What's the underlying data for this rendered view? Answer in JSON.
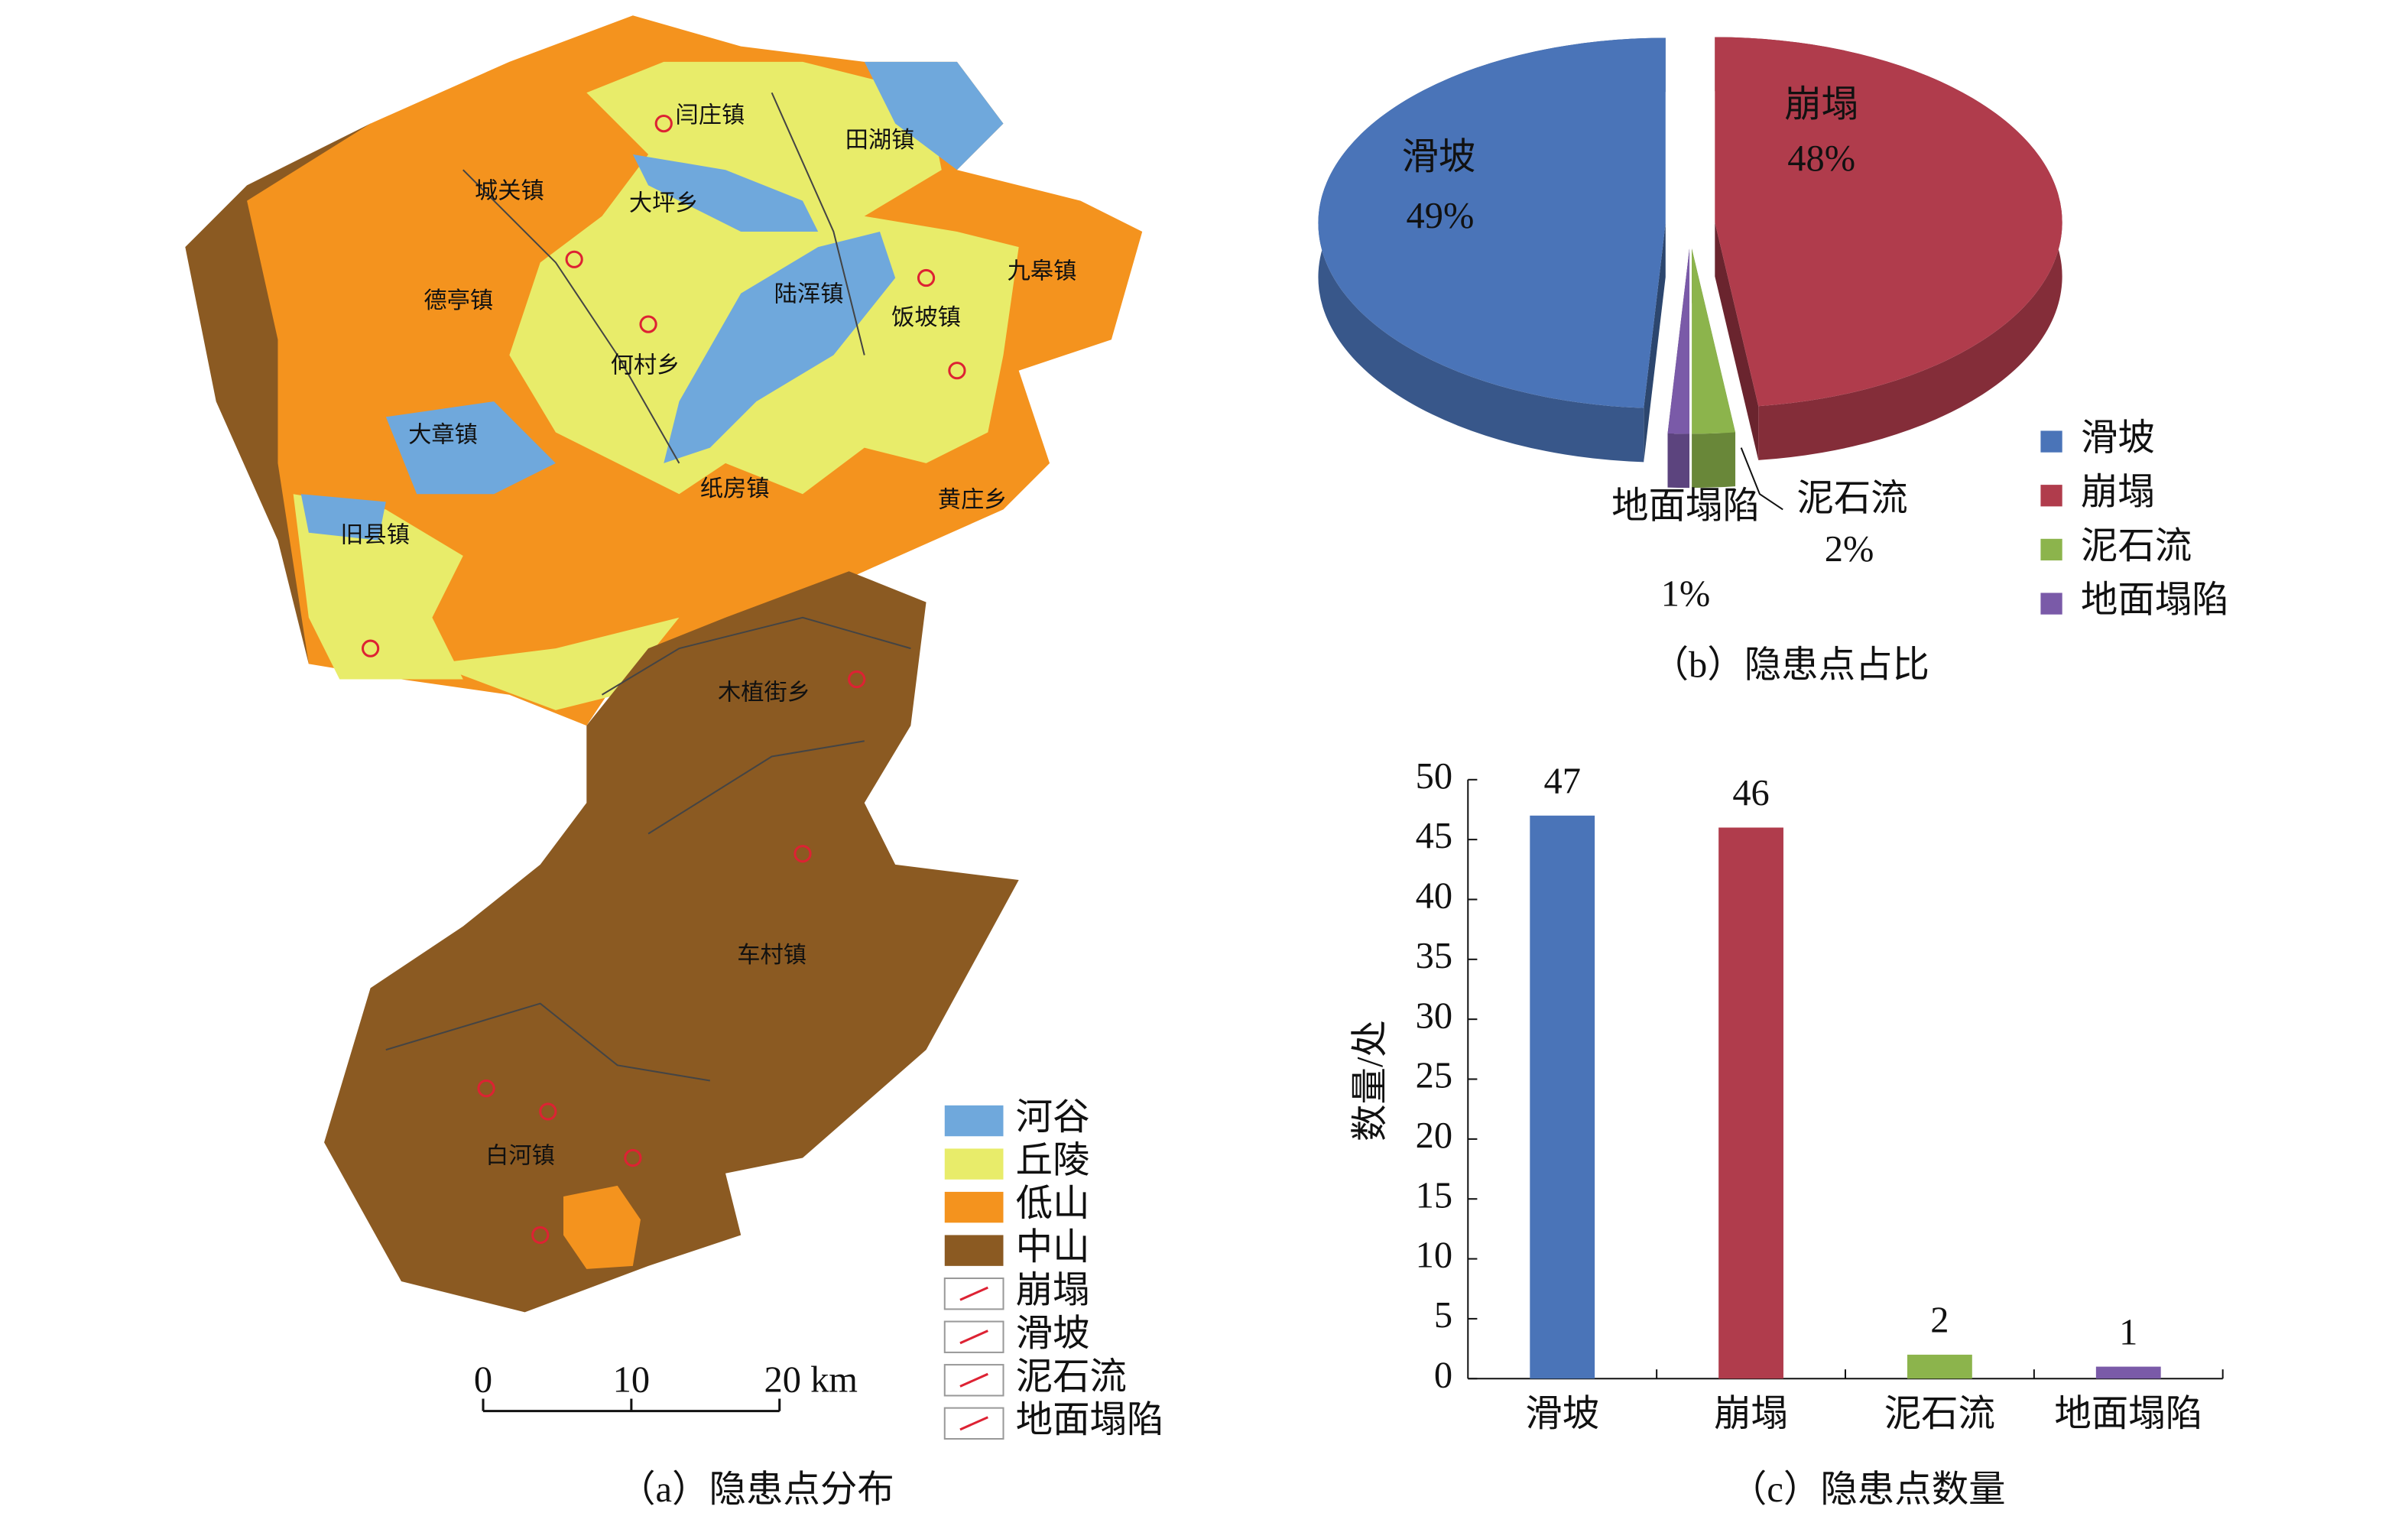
{
  "map": {
    "caption": "（a）隐患点分布",
    "towns": [
      "闫庄镇",
      "田湖镇",
      "城关镇",
      "大坪乡",
      "九皋镇",
      "德亭镇",
      "陆浑镇",
      "饭坡镇",
      "何村乡",
      "大章镇",
      "纸房镇",
      "黄庄乡",
      "旧县镇",
      "木植街乡",
      "车村镇",
      "白河镇"
    ],
    "legend": [
      "河谷",
      "丘陵",
      "低山",
      "中山",
      "崩塌",
      "滑坡",
      "泥石流",
      "地面塌陷"
    ],
    "scale": {
      "ticks": [
        0,
        10,
        {
          "value": 20,
          "label": "20 km"
        }
      ]
    }
  },
  "chart_data": [
    {
      "type": "pie",
      "caption": "（b）隐患点占比",
      "categories": [
        "滑坡",
        "崩塌",
        "泥石流",
        "地面塌陷"
      ],
      "values": [
        49,
        48,
        2,
        1
      ],
      "value_labels": [
        "49%",
        "48%",
        "2%",
        "1%"
      ],
      "colors": [
        "#4a74b8",
        "#b03c4c",
        "#8cb44c",
        "#7a5aa8"
      ],
      "legend": true
    },
    {
      "type": "bar",
      "caption": "（c）隐患点数量",
      "y_label": "数量/处",
      "categories": [
        "滑坡",
        "崩塌",
        "泥石流",
        "地面塌陷"
      ],
      "values": [
        47,
        46,
        2,
        1
      ],
      "colors": [
        "#4a74b8",
        "#b03c4c",
        "#8cb44c",
        "#7a5aa8"
      ],
      "ylim": [
        0,
        50
      ],
      "yticks": [
        0,
        5,
        10,
        15,
        20,
        25,
        30,
        35,
        40,
        45,
        50
      ]
    }
  ]
}
